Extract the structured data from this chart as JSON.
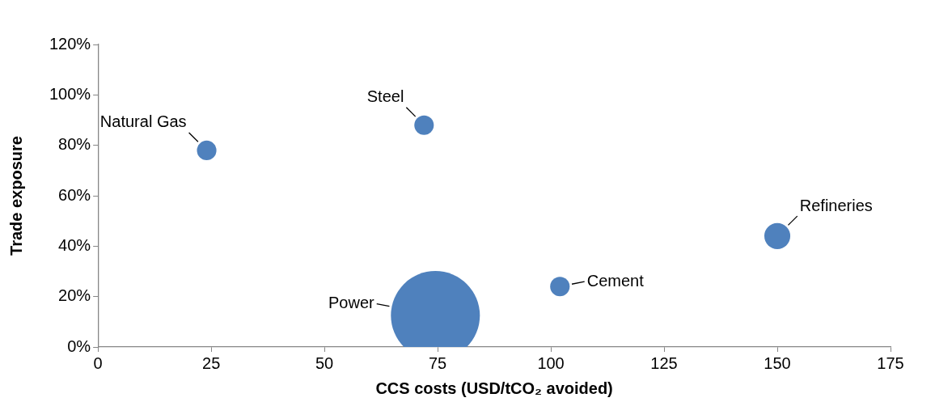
{
  "chart_data": {
    "type": "bubble",
    "xlabel": "CCS costs (USD/tCO₂ avoided)",
    "ylabel": "Trade exposure",
    "xlim": [
      0,
      175
    ],
    "xticks": [
      0,
      25,
      50,
      75,
      100,
      125,
      150,
      175
    ],
    "ylim": [
      0,
      120
    ],
    "yticks": [
      {
        "value": 0,
        "label": "0%"
      },
      {
        "value": 20,
        "label": "20%"
      },
      {
        "value": 40,
        "label": "40%"
      },
      {
        "value": 60,
        "label": "60%"
      },
      {
        "value": 80,
        "label": "80%"
      },
      {
        "value": 100,
        "label": "100%"
      },
      {
        "value": 120,
        "label": "120%"
      }
    ],
    "grid": false,
    "legend": false,
    "series": [
      {
        "name": "Natural Gas",
        "color": "#4f81bd",
        "x": [
          24
        ],
        "values": [
          78
        ],
        "sizes": [
          0.048
        ]
      },
      {
        "name": "Steel",
        "color": "#4f81bd",
        "x": [
          72
        ],
        "values": [
          88
        ],
        "sizes": [
          0.048
        ]
      },
      {
        "name": "Refineries",
        "color": "#4f81bd",
        "x": [
          150
        ],
        "values": [
          44
        ],
        "sizes": [
          0.085
        ]
      },
      {
        "name": "Cement",
        "color": "#4f81bd",
        "x": [
          102
        ],
        "values": [
          24
        ],
        "sizes": [
          0.048
        ]
      },
      {
        "name": "Power",
        "color": "#4f81bd",
        "x": [
          74.5
        ],
        "values": [
          12.5
        ],
        "sizes": [
          1
        ]
      }
    ]
  }
}
